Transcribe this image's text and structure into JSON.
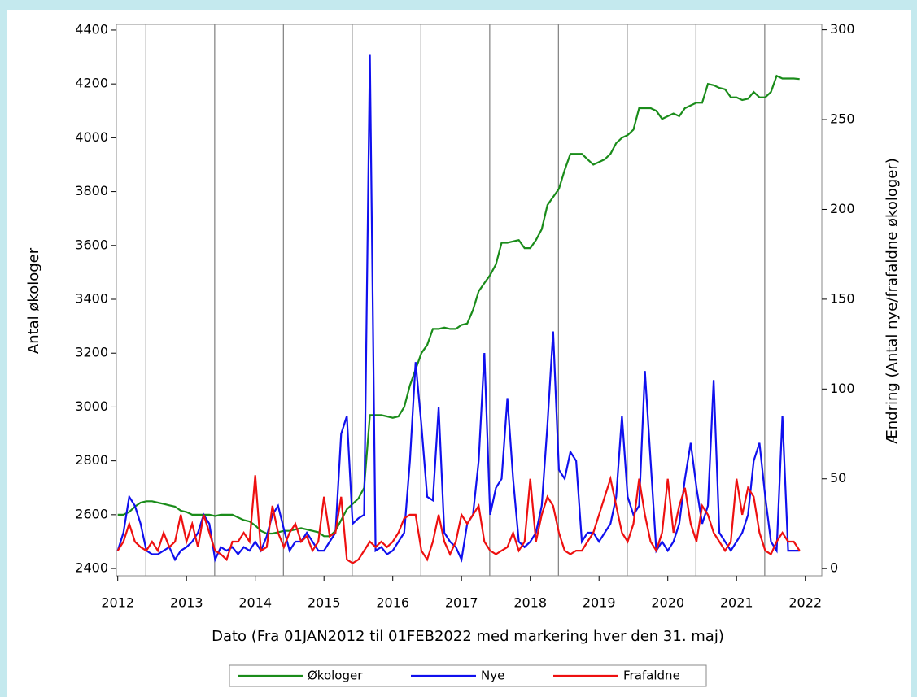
{
  "chart_data": {
    "type": "line",
    "xlabel": "Dato (Fra 01JAN2012 til 01FEB2022 med markering hver den 31. maj)",
    "ylabel": "Antal økologer",
    "y2label": "Ændring (Antal nye/frafaldne økologer)",
    "xlim": [
      2011.98,
      2022.24
    ],
    "xticks": [
      2012,
      2013,
      2014,
      2015,
      2016,
      2017,
      2018,
      2019,
      2020,
      2021,
      2022
    ],
    "ylim": [
      2373,
      4421
    ],
    "yticks": [
      2400,
      2600,
      2800,
      3000,
      3200,
      3400,
      3600,
      3800,
      4000,
      4200,
      4400
    ],
    "y2lim": [
      -4,
      303
    ],
    "y2ticks": [
      0,
      50,
      100,
      150,
      200,
      250,
      300
    ],
    "vlines": [
      2012.41,
      2013.41,
      2014.41,
      2015.41,
      2016.41,
      2017.41,
      2018.41,
      2019.41,
      2020.41,
      2021.41
    ],
    "legend": "bottom",
    "x": [
      2012,
      2012.083,
      2012.167,
      2012.25,
      2012.333,
      2012.417,
      2012.5,
      2012.583,
      2012.667,
      2012.75,
      2012.833,
      2012.917,
      2013,
      2013.083,
      2013.167,
      2013.25,
      2013.333,
      2013.417,
      2013.5,
      2013.583,
      2013.667,
      2013.75,
      2013.833,
      2013.917,
      2014,
      2014.083,
      2014.167,
      2014.25,
      2014.333,
      2014.417,
      2014.5,
      2014.583,
      2014.667,
      2014.75,
      2014.833,
      2014.917,
      2015,
      2015.083,
      2015.167,
      2015.25,
      2015.333,
      2015.417,
      2015.5,
      2015.583,
      2015.667,
      2015.75,
      2015.833,
      2015.917,
      2016,
      2016.083,
      2016.167,
      2016.25,
      2016.333,
      2016.417,
      2016.5,
      2016.583,
      2016.667,
      2016.75,
      2016.833,
      2016.917,
      2017,
      2017.083,
      2017.167,
      2017.25,
      2017.333,
      2017.417,
      2017.5,
      2017.583,
      2017.667,
      2017.75,
      2017.833,
      2017.917,
      2018,
      2018.083,
      2018.167,
      2018.25,
      2018.333,
      2018.417,
      2018.5,
      2018.583,
      2018.667,
      2018.75,
      2018.833,
      2018.917,
      2019,
      2019.083,
      2019.167,
      2019.25,
      2019.333,
      2019.417,
      2019.5,
      2019.583,
      2019.667,
      2019.75,
      2019.833,
      2019.917,
      2020,
      2020.083,
      2020.167,
      2020.25,
      2020.333,
      2020.417,
      2020.5,
      2020.583,
      2020.667,
      2020.75,
      2020.833,
      2020.917,
      2021,
      2021.083,
      2021.167,
      2021.25,
      2021.333,
      2021.417,
      2021.5,
      2021.583,
      2021.667,
      2021.75,
      2021.833,
      2021.917
    ],
    "series": [
      {
        "name": "Økologer",
        "color": "#1a8c1a",
        "axis": "y",
        "values": [
          2600,
          2600,
          2610,
          2630,
          2645,
          2650,
          2650,
          2645,
          2640,
          2635,
          2630,
          2615,
          2610,
          2600,
          2600,
          2600,
          2600,
          2595,
          2600,
          2600,
          2600,
          2590,
          2580,
          2575,
          2560,
          2540,
          2530,
          2530,
          2535,
          2540,
          2540,
          2545,
          2550,
          2545,
          2540,
          2535,
          2520,
          2520,
          2540,
          2580,
          2620,
          2640,
          2660,
          2700,
          2970,
          2970,
          2970,
          2965,
          2960,
          2965,
          3000,
          3080,
          3140,
          3200,
          3230,
          3290,
          3290,
          3295,
          3290,
          3290,
          3305,
          3310,
          3360,
          3430,
          3460,
          3490,
          3530,
          3610,
          3610,
          3615,
          3620,
          3590,
          3590,
          3620,
          3660,
          3750,
          3780,
          3810,
          3880,
          3940,
          3940,
          3940,
          3920,
          3900,
          3910,
          3920,
          3940,
          3980,
          4000,
          4010,
          4030,
          4110,
          4110,
          4110,
          4100,
          4070,
          4080,
          4090,
          4080,
          4110,
          4120,
          4130,
          4130,
          4200,
          4195,
          4185,
          4180,
          4150,
          4150,
          4140,
          4145,
          4170,
          4150,
          4150,
          4170,
          4230,
          4220,
          4220,
          4220,
          4218
        ]
      },
      {
        "name": "Nye",
        "color": "#1010ee",
        "axis": "y2",
        "values": [
          10,
          20,
          40,
          35,
          25,
          10,
          8,
          8,
          10,
          12,
          5,
          10,
          12,
          15,
          20,
          30,
          25,
          5,
          12,
          10,
          12,
          8,
          12,
          10,
          15,
          10,
          18,
          30,
          35,
          22,
          10,
          15,
          15,
          20,
          15,
          10,
          10,
          15,
          20,
          75,
          85,
          25,
          28,
          30,
          286,
          10,
          12,
          8,
          10,
          15,
          20,
          60,
          115,
          80,
          40,
          38,
          90,
          20,
          15,
          12,
          5,
          25,
          30,
          60,
          120,
          30,
          45,
          50,
          95,
          50,
          15,
          12,
          15,
          20,
          35,
          80,
          132,
          55,
          50,
          65,
          60,
          15,
          20,
          20,
          15,
          20,
          25,
          40,
          85,
          40,
          30,
          35,
          110,
          60,
          10,
          15,
          10,
          15,
          25,
          50,
          70,
          45,
          25,
          35,
          105,
          20,
          15,
          10,
          15,
          20,
          30,
          60,
          70,
          40,
          15,
          10,
          85,
          10,
          10,
          10
        ]
      },
      {
        "name": "Frafaldne",
        "color": "#ee1010",
        "axis": "y2",
        "values": [
          10,
          15,
          25,
          15,
          12,
          10,
          15,
          10,
          20,
          12,
          15,
          30,
          15,
          25,
          12,
          30,
          20,
          10,
          8,
          5,
          15,
          15,
          20,
          15,
          52,
          10,
          12,
          35,
          20,
          12,
          20,
          25,
          15,
          18,
          10,
          15,
          40,
          18,
          20,
          40,
          5,
          3,
          5,
          10,
          15,
          12,
          15,
          12,
          15,
          20,
          28,
          30,
          30,
          10,
          5,
          15,
          30,
          15,
          8,
          15,
          30,
          25,
          30,
          35,
          15,
          10,
          8,
          10,
          12,
          20,
          10,
          15,
          50,
          15,
          30,
          40,
          35,
          20,
          10,
          8,
          10,
          10,
          15,
          20,
          30,
          40,
          50,
          35,
          20,
          15,
          25,
          50,
          30,
          15,
          10,
          20,
          50,
          20,
          35,
          45,
          25,
          15,
          35,
          30,
          20,
          15,
          10,
          15,
          50,
          30,
          45,
          40,
          20,
          10,
          8,
          15,
          20,
          15,
          15,
          10
        ]
      }
    ]
  }
}
